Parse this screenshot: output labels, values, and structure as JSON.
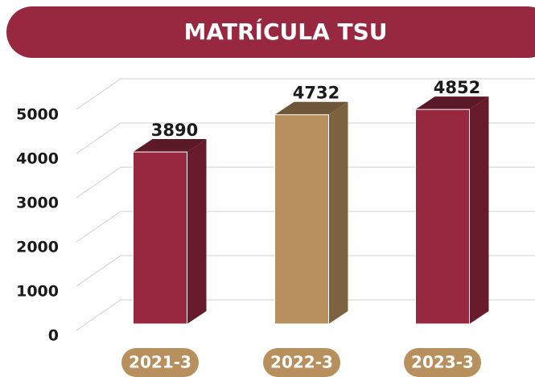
{
  "chart_data": {
    "type": "bar3d",
    "title": "MATRÍCULA TSU",
    "categories": [
      "2021-3",
      "2022-3",
      "2023-3"
    ],
    "values": [
      3890,
      4732,
      4852
    ],
    "colors": [
      "#98283f",
      "#b8905e",
      "#98283f"
    ],
    "ylim": [
      0,
      5000
    ],
    "yticks": [
      0,
      1000,
      2000,
      3000,
      4000,
      5000
    ],
    "grid": true
  }
}
